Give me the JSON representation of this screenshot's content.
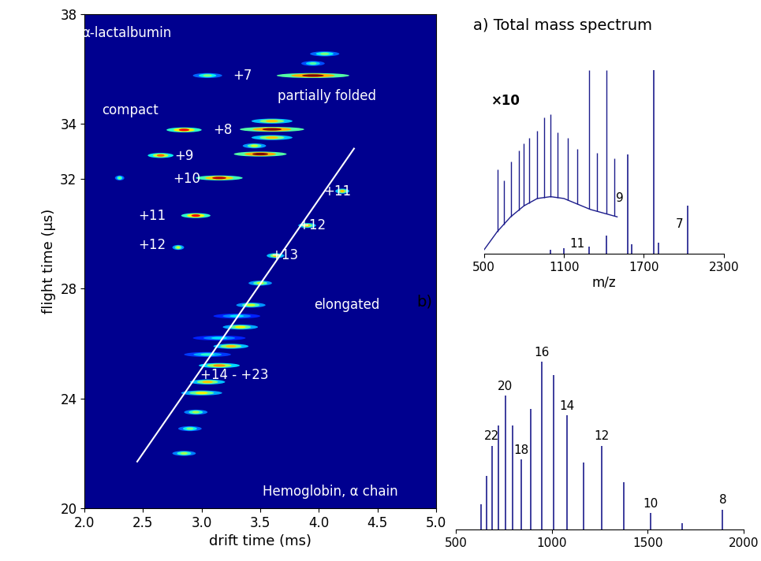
{
  "chart_data": [
    {
      "type": "heatmap",
      "xlabel": "drift time (ms)",
      "ylabel": "flight time (μs)",
      "xlim": [
        2.0,
        5.0
      ],
      "xticks": [
        2.0,
        2.5,
        3.0,
        3.5,
        4.0,
        4.5,
        5.0
      ],
      "ylim": [
        20,
        38
      ],
      "yticks": [
        20,
        24,
        28,
        32,
        34,
        38
      ],
      "color": "#00008f",
      "spots": {
        "drift": [
          3.95,
          3.05,
          4.05,
          3.95,
          2.85,
          3.6,
          3.6,
          3.6,
          2.65,
          3.5,
          3.45,
          3.15,
          2.3,
          2.95,
          2.8,
          4.2,
          3.9,
          3.63,
          3.5,
          3.42,
          3.33,
          3.25,
          3.15,
          3.05,
          3.0,
          2.95,
          2.9,
          2.85,
          3.3,
          3.15,
          3.05
        ],
        "flight": [
          35.76,
          35.76,
          36.55,
          36.2,
          33.78,
          33.8,
          34.1,
          33.5,
          32.85,
          32.9,
          33.2,
          32.03,
          32.03,
          30.66,
          29.5,
          31.55,
          30.3,
          29.2,
          28.2,
          27.4,
          26.6,
          25.9,
          25.2,
          24.6,
          24.2,
          23.5,
          22.9,
          22.0,
          27.0,
          26.2,
          25.6
        ],
        "spread": [
          0.62,
          0.25,
          0.25,
          0.2,
          0.3,
          0.55,
          0.35,
          0.35,
          0.22,
          0.45,
          0.2,
          0.4,
          0.08,
          0.25,
          0.1,
          0.12,
          0.15,
          0.15,
          0.2,
          0.25,
          0.3,
          0.3,
          0.35,
          0.3,
          0.35,
          0.2,
          0.2,
          0.2,
          0.4,
          0.45,
          0.4
        ],
        "intensity": [
          1.0,
          0.5,
          0.5,
          0.45,
          0.9,
          1.0,
          0.7,
          0.7,
          0.8,
          1.0,
          0.6,
          0.95,
          0.5,
          0.9,
          0.6,
          0.7,
          0.7,
          0.7,
          0.6,
          0.6,
          0.65,
          0.7,
          0.75,
          0.7,
          0.65,
          0.55,
          0.5,
          0.55,
          0.35,
          0.35,
          0.4
        ]
      },
      "trend_line": {
        "x": [
          2.45,
          4.3
        ],
        "y": [
          21.7,
          33.1
        ],
        "color": "#ffffff"
      },
      "annotations": [
        {
          "text": "α-lactalbumin",
          "x": 2.36,
          "y": 37.3
        },
        {
          "text": "compact",
          "x": 2.39,
          "y": 34.5
        },
        {
          "text": "partially folded",
          "x": 4.07,
          "y": 35.0
        },
        {
          "text": "+7",
          "x": 3.35,
          "y": 35.76
        },
        {
          "text": "+8",
          "x": 3.18,
          "y": 33.78
        },
        {
          "text": "+9",
          "x": 2.85,
          "y": 32.82
        },
        {
          "text": "+10",
          "x": 2.87,
          "y": 32.0
        },
        {
          "text": "+11",
          "x": 2.58,
          "y": 30.66
        },
        {
          "text": "+12",
          "x": 2.58,
          "y": 29.6
        },
        {
          "text": "+11",
          "x": 4.16,
          "y": 31.55
        },
        {
          "text": "+12",
          "x": 3.94,
          "y": 30.3
        },
        {
          "text": "+13",
          "x": 3.71,
          "y": 29.2
        },
        {
          "text": "elongated",
          "x": 4.24,
          "y": 27.4
        },
        {
          "text": "+14 - +23",
          "x": 3.28,
          "y": 24.86
        },
        {
          "text": "Hemoglobin, α chain",
          "x": 4.1,
          "y": 20.6
        }
      ]
    },
    {
      "type": "spectrum",
      "title": "a) Total mass spectrum",
      "xlabel": "m/z",
      "xlim": [
        500,
        2300
      ],
      "xticks": [
        500,
        1100,
        1700,
        2300
      ],
      "ylim": [
        0,
        1.1
      ],
      "tick_labels": "x",
      "color": "#1c1c8c",
      "peaks": {
        "x": [
          1000,
          1100,
          1290,
          1420,
          1580,
          1610,
          1775,
          1810,
          2030
        ],
        "values": [
          0.02,
          0.03,
          0.04,
          0.1,
          0.54,
          0.05,
          1.0,
          0.06,
          0.26
        ],
        "labels": [
          null,
          null,
          "11",
          null,
          "9",
          null,
          null,
          null,
          "7"
        ]
      },
      "inset": {
        "label": "×10",
        "x": [
          500,
          600,
          700,
          800,
          900,
          1000,
          1100,
          1200,
          1300,
          1400,
          1500
        ],
        "values": [
          0.02,
          0.12,
          0.2,
          0.26,
          0.3,
          0.31,
          0.3,
          0.27,
          0.24,
          0.22,
          0.2
        ],
        "peaks": {
          "x": [
            600,
            650,
            700,
            760,
            800,
            840,
            900,
            950,
            1000,
            1050,
            1130,
            1200,
            1290,
            1350,
            1420,
            1480
          ],
          "values": [
            0.46,
            0.4,
            0.5,
            0.56,
            0.6,
            0.63,
            0.67,
            0.74,
            0.76,
            0.66,
            0.63,
            0.57,
            1.0,
            0.55,
            1.0,
            0.52
          ]
        }
      }
    },
    {
      "type": "spectrum",
      "title": "b)",
      "xlim": [
        500,
        2000
      ],
      "xticks": [
        500,
        1000,
        1500,
        2000
      ],
      "ylim": [
        0,
        1.15
      ],
      "tick_labels": "x",
      "color": "#1c1c8c",
      "peaks": {
        "x": [
          1891.8,
          1681.7,
          1513.6,
          1376.1,
          1261.5,
          1164.5,
          1081.4,
          1009.4,
          946.4,
          890.8,
          841.3,
          797.1,
          757.3,
          721.3,
          688.5,
          658.7,
          631.3
        ],
        "values": [
          0.12,
          0.04,
          0.1,
          0.28,
          0.5,
          0.4,
          0.68,
          0.92,
          1.0,
          0.72,
          0.42,
          0.62,
          0.8,
          0.62,
          0.5,
          0.32,
          0.15
        ],
        "labels": [
          "8",
          null,
          "10",
          null,
          "12",
          null,
          "14",
          null,
          "16",
          null,
          "18",
          null,
          "20",
          null,
          "22",
          null,
          null
        ]
      }
    }
  ]
}
